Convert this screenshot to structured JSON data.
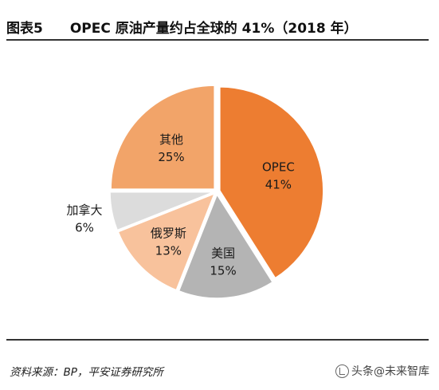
{
  "header": {
    "figure_label": "图表5",
    "title": "OPEC 原油产量约占全球的 41%（2018 年）"
  },
  "chart_data": {
    "type": "pie",
    "title": "OPEC 原油产量约占全球的 41%（2018 年）",
    "start_angle_deg": 0,
    "direction": "clockwise",
    "slices": [
      {
        "label": "OPEC",
        "value": 41,
        "value_label": "41%",
        "color": "#ED7D31"
      },
      {
        "label": "美国",
        "value": 15,
        "value_label": "15%",
        "color": "#B4B4B4"
      },
      {
        "label": "俄罗斯",
        "value": 13,
        "value_label": "13%",
        "color": "#F8C29C"
      },
      {
        "label": "加拿大",
        "value": 6,
        "value_label": "6%",
        "color": "#DCDCDC"
      },
      {
        "label": "其他",
        "value": 25,
        "value_label": "25%",
        "color": "#F2A469"
      }
    ]
  },
  "footer": {
    "source": "资料来源：BP，平安证券研究所",
    "watermark": "头条@未来智库",
    "watermark_icon": "toutiao-logo-icon"
  }
}
